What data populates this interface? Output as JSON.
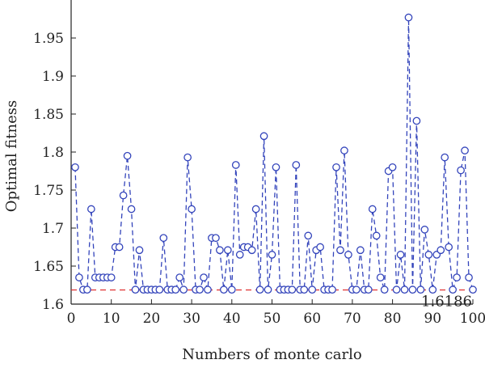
{
  "chart_data": {
    "type": "line",
    "title": "",
    "xlabel": "Numbers of monte carlo",
    "ylabel": "Optimal fitness",
    "xlim": [
      0,
      100
    ],
    "ylim": [
      1.6,
      2.0
    ],
    "xticks": [
      0,
      10,
      20,
      30,
      40,
      50,
      60,
      70,
      80,
      90,
      100
    ],
    "yticks": [
      1.6,
      1.65,
      1.7,
      1.75,
      1.8,
      1.85,
      1.9,
      1.95
    ],
    "ytick_labels": [
      "1.6",
      "1.65",
      "1.7",
      "1.75",
      "1.8",
      "1.85",
      "1.9",
      "1.95"
    ],
    "grid": false,
    "series": [
      {
        "line_color": "#3344bb",
        "line_style": "dashed",
        "marker": "circle-open",
        "x": [
          1,
          2,
          3,
          4,
          5,
          6,
          7,
          8,
          9,
          10,
          11,
          12,
          13,
          14,
          15,
          16,
          17,
          18,
          19,
          20,
          21,
          22,
          23,
          24,
          25,
          26,
          27,
          28,
          29,
          30,
          31,
          32,
          33,
          34,
          35,
          36,
          37,
          38,
          39,
          40,
          41,
          42,
          43,
          44,
          45,
          46,
          47,
          48,
          49,
          50,
          51,
          52,
          53,
          54,
          55,
          56,
          57,
          58,
          59,
          60,
          61,
          62,
          63,
          64,
          65,
          66,
          67,
          68,
          69,
          70,
          71,
          72,
          73,
          74,
          75,
          76,
          77,
          78,
          79,
          80,
          81,
          82,
          83,
          84,
          85,
          86,
          87,
          88,
          89,
          90,
          91,
          92,
          93,
          94,
          95,
          96,
          97,
          98,
          99,
          100
        ],
        "values": [
          1.78,
          1.635,
          1.619,
          1.619,
          1.725,
          1.635,
          1.635,
          1.635,
          1.635,
          1.635,
          1.675,
          1.675,
          1.743,
          1.795,
          1.725,
          1.619,
          1.671,
          1.619,
          1.619,
          1.619,
          1.619,
          1.619,
          1.687,
          1.619,
          1.619,
          1.619,
          1.635,
          1.619,
          1.793,
          1.725,
          1.619,
          1.619,
          1.635,
          1.619,
          1.687,
          1.687,
          1.671,
          1.619,
          1.671,
          1.619,
          1.783,
          1.665,
          1.675,
          1.675,
          1.671,
          1.725,
          1.619,
          1.821,
          1.619,
          1.665,
          1.78,
          1.619,
          1.619,
          1.619,
          1.619,
          1.783,
          1.619,
          1.619,
          1.69,
          1.619,
          1.671,
          1.675,
          1.619,
          1.619,
          1.619,
          1.78,
          1.671,
          1.802,
          1.665,
          1.619,
          1.619,
          1.671,
          1.619,
          1.619,
          1.725,
          1.69,
          1.635,
          1.619,
          1.775,
          1.78,
          1.619,
          1.665,
          1.619,
          1.977,
          1.619,
          1.841,
          1.619,
          1.698,
          1.665,
          1.619,
          1.665,
          1.671,
          1.793,
          1.675,
          1.619,
          1.635,
          1.776,
          1.802,
          1.635,
          1.619
        ]
      }
    ],
    "reference_line": {
      "value": 1.6186,
      "label": "1.6186",
      "color": "#e03030",
      "line_style": "dashed"
    }
  }
}
